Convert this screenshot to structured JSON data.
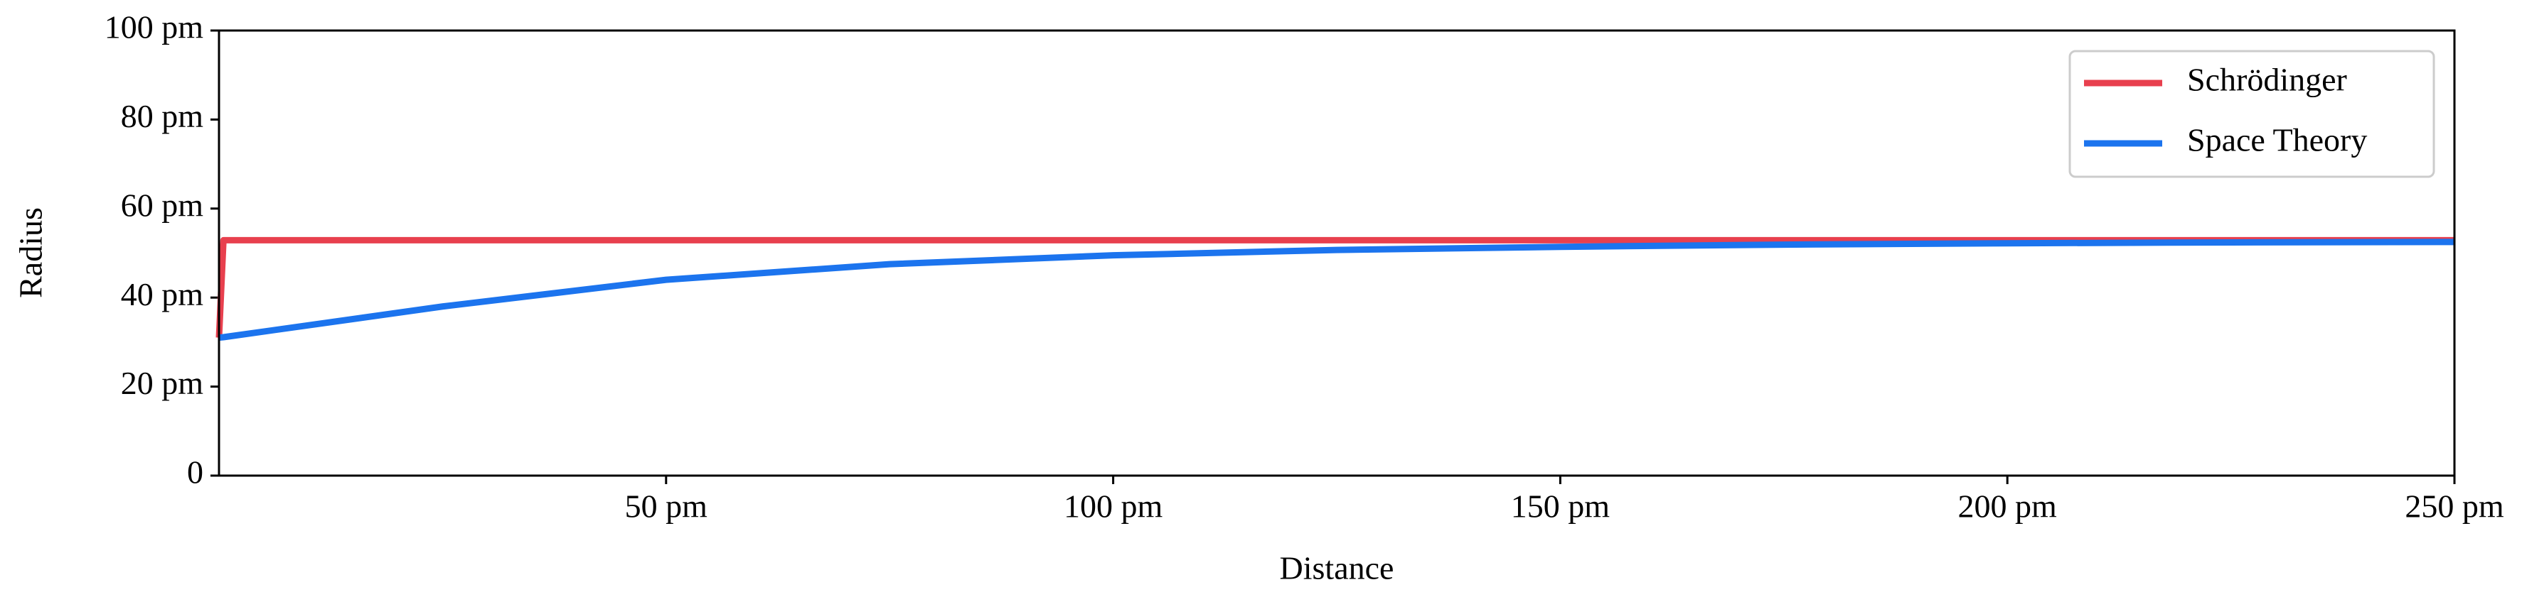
{
  "chart_data": {
    "type": "line",
    "x_label": "Distance",
    "y_label": "Radius",
    "x": [
      0,
      0.5,
      25,
      50,
      75,
      100,
      125,
      150,
      175,
      200,
      225,
      250
    ],
    "series": [
      {
        "name": "Schrödinger",
        "color": "#e8404e",
        "values": [
          31,
          52.9,
          52.9,
          52.9,
          52.9,
          52.9,
          52.9,
          52.9,
          52.9,
          52.9,
          52.9,
          52.9
        ]
      },
      {
        "name": "Space Theory",
        "color": "#1c74ee",
        "values": [
          31,
          31.1,
          38,
          44,
          47.5,
          49.5,
          50.7,
          51.4,
          51.9,
          52.2,
          52.4,
          52.5
        ]
      }
    ],
    "xlim": [
      0,
      250
    ],
    "xticks": [
      {
        "value": 50,
        "label": "50 pm"
      },
      {
        "value": 100,
        "label": "100 pm"
      },
      {
        "value": 150,
        "label": "150 pm"
      },
      {
        "value": 200,
        "label": "200 pm"
      },
      {
        "value": 250,
        "label": "250 pm"
      }
    ],
    "ylim": [
      0,
      100
    ],
    "yticks": [
      0,
      {
        "value": 20,
        "label": "20 pm"
      },
      {
        "value": 40,
        "label": "40 pm"
      },
      {
        "value": 60,
        "label": "60 pm"
      },
      {
        "value": 80,
        "label": "80 pm"
      },
      {
        "value": 100,
        "label": "100 pm"
      }
    ],
    "legend": "upper right"
  }
}
